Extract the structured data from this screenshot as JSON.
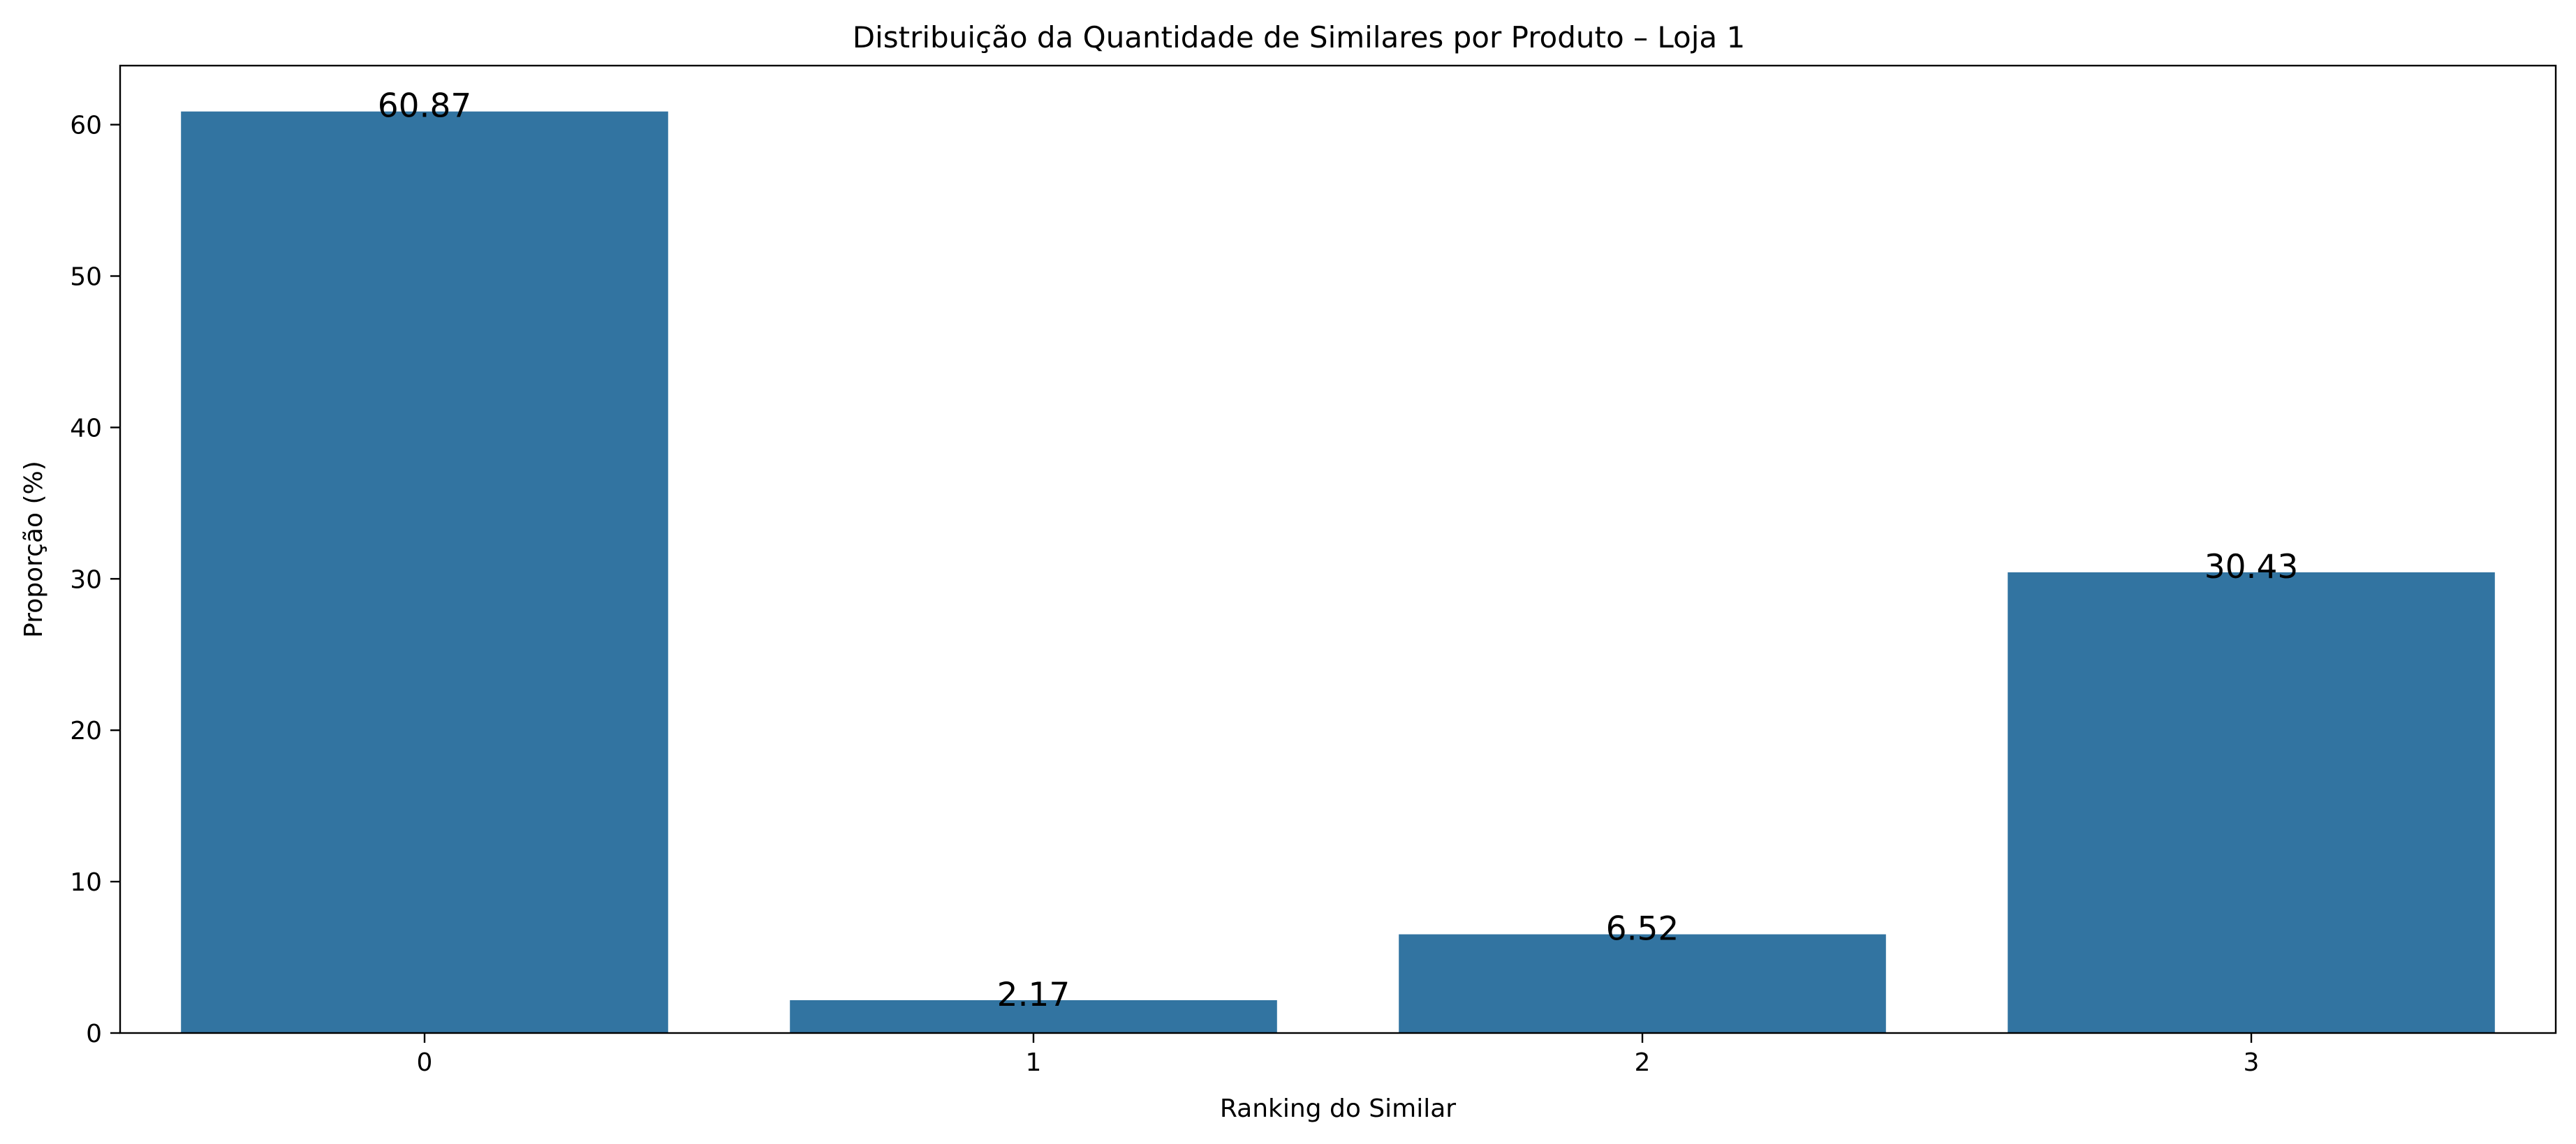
{
  "chart_data": {
    "type": "bar",
    "title": "Distribuição da Quantidade de Similares por Produto – Loja 1",
    "xlabel": "Ranking do Similar",
    "ylabel": "Proporção (%)",
    "categories": [
      "0",
      "1",
      "2",
      "3"
    ],
    "values": [
      60.87,
      2.17,
      6.52,
      30.43
    ],
    "data_labels": [
      "60.87",
      "2.17",
      "6.52",
      "30.43"
    ],
    "ylim": [
      0,
      63.9
    ],
    "yticks": [
      0,
      10,
      20,
      30,
      40,
      50,
      60
    ],
    "grid": false,
    "bar_color": "#3274a1"
  }
}
